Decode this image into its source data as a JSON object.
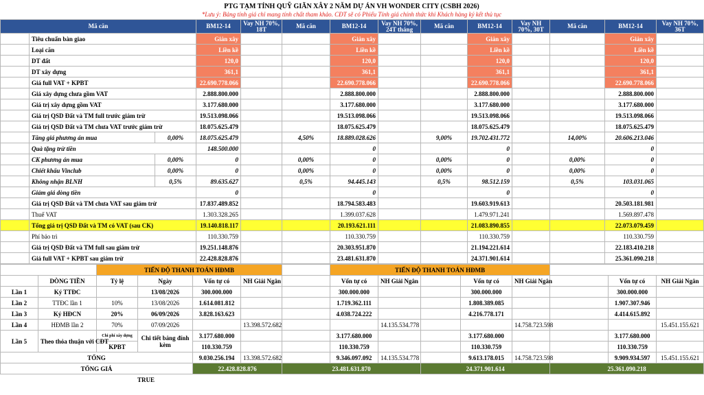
{
  "header": {
    "title": "PTG TẠM TÍNH QUỸ GIÃN XÂY 2 NĂM DỰ ÁN VH WONDER CITY (CSBH 2026)",
    "note": "*Lưu ý: Bảng tính giá chỉ mang tính chất tham khảo. CĐT sẽ có Phiếu Tính giá chính thức khi Khách hàng ký kết thủ tục"
  },
  "top": {
    "blocks": [
      {
        "code_label": "Mã căn",
        "code": "BM12-14",
        "loan": "Vay NH 70%, 18T"
      },
      {
        "code_label": "Mã căn",
        "code": "BM12-14",
        "loan": "Vay NH 70%, 24T tháng"
      },
      {
        "code_label": "Mã căn",
        "code": "BM12-14",
        "loan": "Vay NH 70%, 30T"
      },
      {
        "code_label": "Mã căn",
        "code": "BM12-14",
        "loan": "Vay NH 70%, 36T"
      }
    ],
    "rows": [
      {
        "label": "Tiêu chuẩn bàn giao",
        "fill": "#f4805f",
        "cells": [
          {
            "value": "Giản xây"
          },
          {
            "value": "Giản xây"
          },
          {
            "value": "Giản xây"
          },
          {
            "value": "Giản xây"
          }
        ]
      },
      {
        "label": "Loại căn",
        "fill": "#f4805f",
        "cells": [
          {
            "value": "Liền kề"
          },
          {
            "value": "Liền kề"
          },
          {
            "value": "Liền kề"
          },
          {
            "value": "Liền kề"
          }
        ]
      },
      {
        "label": "DT đất",
        "fill": "#f4805f",
        "cells": [
          {
            "value": "120,0"
          },
          {
            "value": "120,0"
          },
          {
            "value": "120,0"
          },
          {
            "value": "120,0"
          }
        ]
      },
      {
        "label": "DT xây dựng",
        "fill": "#f4805f",
        "cells": [
          {
            "value": "361,1"
          },
          {
            "value": "361,1"
          },
          {
            "value": "361,1"
          },
          {
            "value": "361,1"
          }
        ]
      },
      {
        "label": "Giá full VAT + KPBT",
        "fill": "#f4805f",
        "cells": [
          {
            "value": "22.690.778.066"
          },
          {
            "value": "22.690.778.066"
          },
          {
            "value": "22.690.778.066"
          },
          {
            "value": "22.690.778.066"
          }
        ]
      },
      {
        "label": "Giá xây dựng chưa gồm VAT",
        "cells": [
          {
            "value": "2.888.800.000"
          },
          {
            "value": "2.888.800.000"
          },
          {
            "value": "2.888.800.000"
          },
          {
            "value": "2.888.800.000"
          }
        ]
      },
      {
        "label": "Giá trị xây dựng gồm VAT",
        "cells": [
          {
            "value": "3.177.680.000"
          },
          {
            "value": "3.177.680.000"
          },
          {
            "value": "3.177.680.000"
          },
          {
            "value": "3.177.680.000"
          }
        ]
      },
      {
        "label": "Giá trị QSD Đất và TM full trước giảm trừ",
        "cells": [
          {
            "value": "19.513.098.066"
          },
          {
            "value": "19.513.098.066"
          },
          {
            "value": "19.513.098.066"
          },
          {
            "value": "19.513.098.066"
          }
        ]
      },
      {
        "label": "Giá trị QSD Đất và TM chưa VAT trước giảm trừ",
        "cells": [
          {
            "value": "18.075.625.479"
          },
          {
            "value": "18.075.625.479"
          },
          {
            "value": "18.075.625.479"
          },
          {
            "value": "18.075.625.479"
          }
        ]
      },
      {
        "label": "Tăng giá phương án mua",
        "italic": true,
        "cells": [
          {
            "pct": "0,00%",
            "value": "18.075.625.479"
          },
          {
            "pct": "4,50%",
            "value": "18.889.028.626"
          },
          {
            "pct": "9,00%",
            "value": "19.702.431.772"
          },
          {
            "pct": "14,00%",
            "value": "20.606.213.046"
          }
        ]
      },
      {
        "label": "Quà tặng trừ tiền",
        "italic": true,
        "cells": [
          {
            "value": "148.500.000"
          },
          {
            "value": "0"
          },
          {
            "value": "0"
          },
          {
            "value": "0"
          }
        ]
      },
      {
        "label": "CK phương án mua",
        "italic": true,
        "cells": [
          {
            "pct": "0,00%",
            "value": "0"
          },
          {
            "pct": "0,00%",
            "value": "0"
          },
          {
            "pct": "0,00%",
            "value": "0"
          },
          {
            "pct": "0,00%",
            "value": "0"
          }
        ]
      },
      {
        "label": "Chiết khấu Vinclub",
        "italic": true,
        "cells": [
          {
            "pct": "0,00%",
            "value": "0"
          },
          {
            "pct": "0,00%",
            "value": "0"
          },
          {
            "pct": "0,00%",
            "value": "0"
          },
          {
            "pct": "0,00%",
            "value": "0"
          }
        ]
      },
      {
        "label": "Không nhận BLNH",
        "italic": true,
        "cells": [
          {
            "pct": "0,5%",
            "value": "89.635.627"
          },
          {
            "pct": "0,5%",
            "value": "94.445.143"
          },
          {
            "pct": "0,5%",
            "value": "98.512.159"
          },
          {
            "pct": "0,5%",
            "value": "103.031.065"
          }
        ]
      },
      {
        "label": "Giảm giá dòng tiền",
        "italic": true,
        "cells": [
          {
            "value": "0"
          },
          {
            "value": "0"
          },
          {
            "value": "0"
          },
          {
            "value": "0"
          }
        ]
      },
      {
        "label": "Giá trị QSD Đất và TM chưa VAT sau giảm trừ",
        "cells": [
          {
            "value": "17.837.489.852"
          },
          {
            "value": "18.794.583.483"
          },
          {
            "value": "19.603.919.613"
          },
          {
            "value": "20.503.181.981"
          }
        ]
      },
      {
        "label": "Thuế VAT",
        "light": true,
        "cells": [
          {
            "value": "1.303.328.265"
          },
          {
            "value": "1.399.037.628"
          },
          {
            "value": "1.479.971.241"
          },
          {
            "value": "1.569.897.478"
          }
        ]
      },
      {
        "label": "Tổng giá trị QSD Đất và TM có VAT (sau CK)",
        "row_fill": "#ffff33",
        "cells": [
          {
            "value": "19.140.818.117"
          },
          {
            "value": "20.193.621.111"
          },
          {
            "value": "21.083.890.855"
          },
          {
            "value": "22.073.079.459"
          }
        ]
      },
      {
        "label": "Phí bảo trì",
        "light": true,
        "cells": [
          {
            "value": "110.330.759"
          },
          {
            "value": "110.330.759"
          },
          {
            "value": "110.330.759"
          },
          {
            "value": "110.330.759"
          }
        ]
      },
      {
        "label": "Giá trị QSD Đất và TM full sau giảm trừ",
        "cells": [
          {
            "value": "19.251.148.876"
          },
          {
            "value": "20.303.951.870"
          },
          {
            "value": "21.194.221.614"
          },
          {
            "value": "22.183.410.218"
          }
        ]
      },
      {
        "label": "Giá full VAT + KPBT sau giảm trừ",
        "cells": [
          {
            "value": "22.428.828.876"
          },
          {
            "value": "23.481.631.870"
          },
          {
            "value": "24.371.901.614"
          },
          {
            "value": "25.361.090.218"
          }
        ]
      }
    ]
  },
  "payment": {
    "title": "TIẾN ĐỘ THANH TOÁN HĐMB",
    "headers": {
      "flow": "DÒNG TIỀN",
      "rate": "Tỷ lệ",
      "date": "Ngày",
      "own": "Vốn tự có",
      "bank": "NH Giải Ngân"
    },
    "rows": [
      {
        "step": "Lần 1",
        "name": "Ký TTĐC",
        "date": "13/08/2026",
        "blocks": [
          {
            "own": "300.000.000"
          },
          {
            "own": "300.000.000"
          },
          {
            "own": "300.000.000"
          },
          {
            "own": "300.000.000"
          }
        ]
      },
      {
        "step": "Lần 2",
        "name": "TTĐC lần 1",
        "rate": "10%",
        "light": true,
        "date": "13/08/2026",
        "blocks": [
          {
            "own": "1.614.081.812"
          },
          {
            "own": "1.719.362.111"
          },
          {
            "own": "1.808.389.085"
          },
          {
            "own": "1.907.307.946"
          }
        ]
      },
      {
        "step": "Lần 3",
        "name": "Ký HĐCN",
        "rate": "20%",
        "date": "06/09/2026",
        "blocks": [
          {
            "own": "3.828.163.623"
          },
          {
            "own": "4.038.724.222"
          },
          {
            "own": "4.216.778.171"
          },
          {
            "own": "4.414.615.892"
          }
        ]
      },
      {
        "step": "Lần 4",
        "name": "HĐMB lần 2",
        "rate": "70%",
        "light": true,
        "date": "07/09/2026",
        "blocks": [
          {
            "bank": "13.398.572.682"
          },
          {
            "bank": "14.135.534.778"
          },
          {
            "bank": "14.758.723.598"
          },
          {
            "bank": "15.451.155.621"
          }
        ]
      }
    ],
    "step5": {
      "step": "Lần 5",
      "name": "Theo thỏa thuận với CĐT",
      "date": "Chi tiết bảng đính kèm",
      "parts": [
        {
          "rate": "Chi phí xây dựng",
          "blocks": [
            {
              "own": "3.177.680.000"
            },
            {
              "own": "3.177.680.000"
            },
            {
              "own": "3.177.680.000"
            },
            {
              "own": "3.177.680.000"
            }
          ]
        },
        {
          "rate": "KPBT",
          "blocks": [
            {
              "own": "110.330.759"
            },
            {
              "own": "110.330.759"
            },
            {
              "own": "110.330.759"
            },
            {
              "own": "110.330.759"
            }
          ]
        }
      ]
    },
    "total": {
      "label": "TỔNG",
      "blocks": [
        {
          "own": "9.030.256.194",
          "bank": "13.398.572.682"
        },
        {
          "own": "9.346.097.092",
          "bank": "14.135.534.778"
        },
        {
          "own": "9.613.178.015",
          "bank": "14.758.723.598"
        },
        {
          "own": "9.909.934.597",
          "bank": "15.451.155.621"
        }
      ]
    },
    "grand": {
      "label": "TỔNG GIÁ",
      "fill": "#5b7a32",
      "values": [
        "22.428.828.876",
        "23.481.631.870",
        "24.371.901.614",
        "25.361.090.218"
      ]
    }
  },
  "footer": "TRUE"
}
